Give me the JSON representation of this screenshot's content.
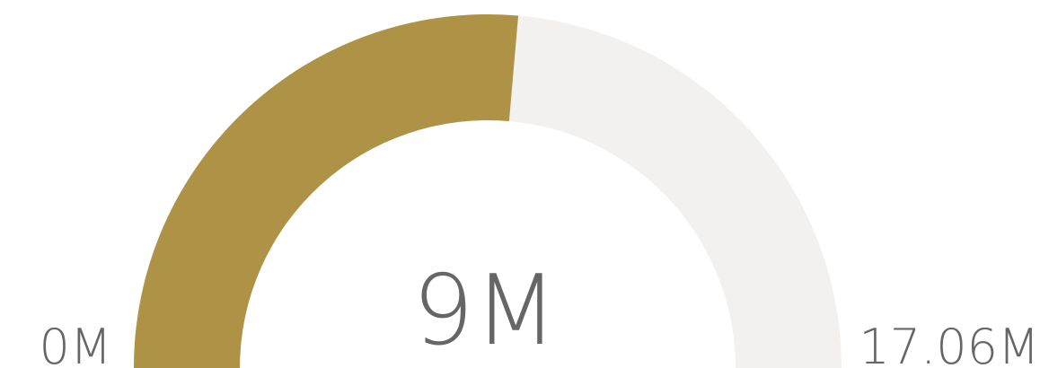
{
  "chart_data": {
    "type": "gauge",
    "value": 9,
    "min": 0,
    "max": 17.06,
    "unit": "M",
    "value_label": "9M",
    "min_label": "0M",
    "max_label": "17.06M",
    "colors": {
      "fill": "#AE9245",
      "track": "#F2F1F0",
      "text": "#666666"
    }
  }
}
